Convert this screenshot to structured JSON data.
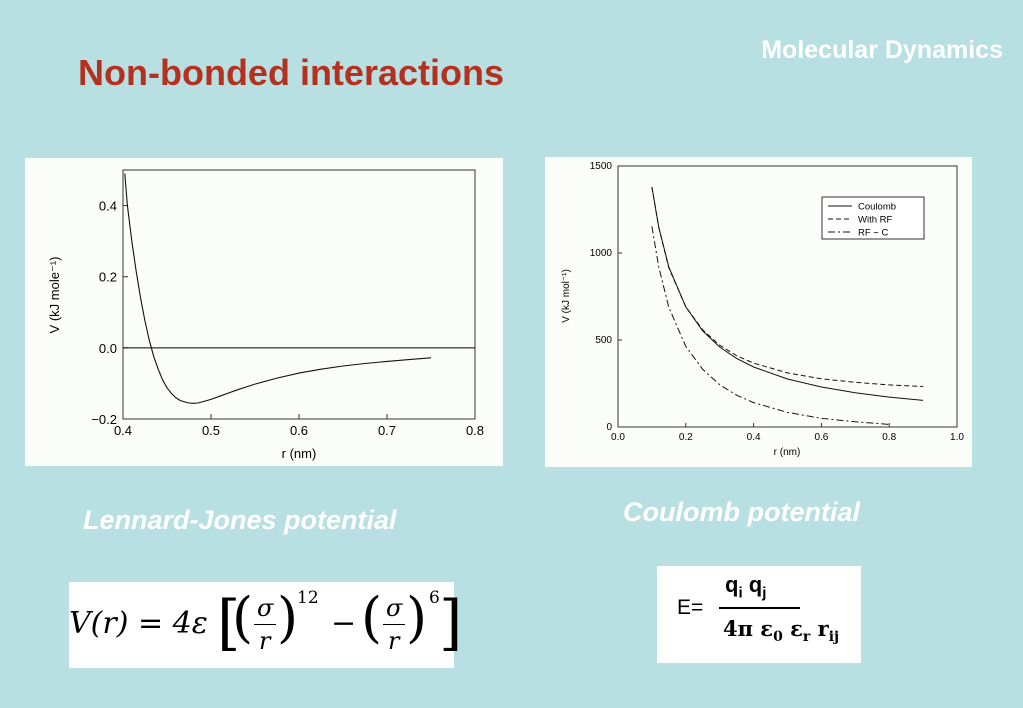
{
  "header": {
    "section": "Molecular Dynamics",
    "title": "Non-bonded interactions"
  },
  "captions": {
    "left": "Lennard-Jones potential",
    "right": "Coulomb potential"
  },
  "formulas": {
    "lj": {
      "lhs": "V(r) = 4ε",
      "exp12": "12",
      "exp6": "6",
      "frac_num": "σ",
      "frac_den": "r",
      "minus": "−"
    },
    "coulomb": {
      "lhs": "E=",
      "numerator": "qi qj",
      "q1": "q",
      "i": "i",
      "q2": "q",
      "j": "j",
      "den_pre": "4π ε",
      "zero": "0",
      "eps": "ε",
      "r_sub": "r",
      "rr": "r",
      "ij": "ij"
    }
  },
  "chart_data": [
    {
      "type": "line",
      "xlabel": "r (nm)",
      "ylabel": "V (kJ mole⁻¹)",
      "xlim": [
        0.4,
        0.8
      ],
      "ylim": [
        -0.2,
        0.5
      ],
      "x_ticks": [
        "0.4",
        "0.5",
        "0.6",
        "0.7",
        "0.8"
      ],
      "y_ticks": [
        "−0.2",
        "0.0",
        "0.2",
        "0.4"
      ],
      "series": [
        {
          "x": [
            0.402,
            0.405,
            0.41,
            0.415,
            0.42,
            0.425,
            0.43,
            0.435,
            0.44,
            0.445,
            0.45,
            0.455,
            0.46,
            0.465,
            0.47,
            0.475,
            0.48,
            0.485,
            0.49,
            0.5,
            0.51,
            0.52,
            0.53,
            0.55,
            0.575,
            0.6,
            0.625,
            0.65,
            0.675,
            0.7,
            0.725,
            0.75
          ],
          "y": [
            0.49,
            0.4,
            0.3,
            0.215,
            0.14,
            0.075,
            0.02,
            -0.025,
            -0.06,
            -0.09,
            -0.112,
            -0.128,
            -0.14,
            -0.148,
            -0.152,
            -0.155,
            -0.156,
            -0.155,
            -0.152,
            -0.145,
            -0.136,
            -0.127,
            -0.118,
            -0.102,
            -0.085,
            -0.071,
            -0.06,
            -0.051,
            -0.044,
            -0.038,
            -0.033,
            -0.028
          ]
        }
      ],
      "hline": 0.0
    },
    {
      "type": "line",
      "xlabel": "r (nm)",
      "ylabel": "V (kJ mol⁻¹)",
      "xlim": [
        0.0,
        1.0
      ],
      "ylim": [
        0,
        1500
      ],
      "x_ticks": [
        "0.0",
        "0.2",
        "0.4",
        "0.6",
        "0.8",
        "1.0"
      ],
      "y_ticks": [
        "0",
        "500",
        "1000",
        "1500"
      ],
      "legend": "top-right",
      "series": [
        {
          "name": "Coulomb",
          "style": "solid",
          "x": [
            0.1,
            0.12,
            0.15,
            0.2,
            0.25,
            0.3,
            0.35,
            0.4,
            0.5,
            0.6,
            0.7,
            0.8,
            0.9
          ],
          "y": [
            1380,
            1150,
            920,
            690,
            552,
            460,
            394,
            345,
            276,
            230,
            197,
            172,
            153
          ]
        },
        {
          "name": "With RF",
          "style": "dashed",
          "x": [
            0.1,
            0.12,
            0.15,
            0.2,
            0.25,
            0.3,
            0.35,
            0.4,
            0.5,
            0.6,
            0.7,
            0.8,
            0.9
          ],
          "y": [
            1380,
            1148,
            915,
            690,
            558,
            470,
            410,
            367,
            311,
            277,
            257,
            242,
            233
          ]
        },
        {
          "name": "RF − C",
          "style": "dashdot",
          "x": [
            0.1,
            0.12,
            0.15,
            0.2,
            0.25,
            0.3,
            0.35,
            0.4,
            0.5,
            0.6,
            0.7,
            0.8
          ],
          "y": [
            1153,
            921,
            688,
            463,
            331,
            243,
            183,
            140,
            84,
            50,
            30,
            15
          ]
        }
      ]
    }
  ]
}
